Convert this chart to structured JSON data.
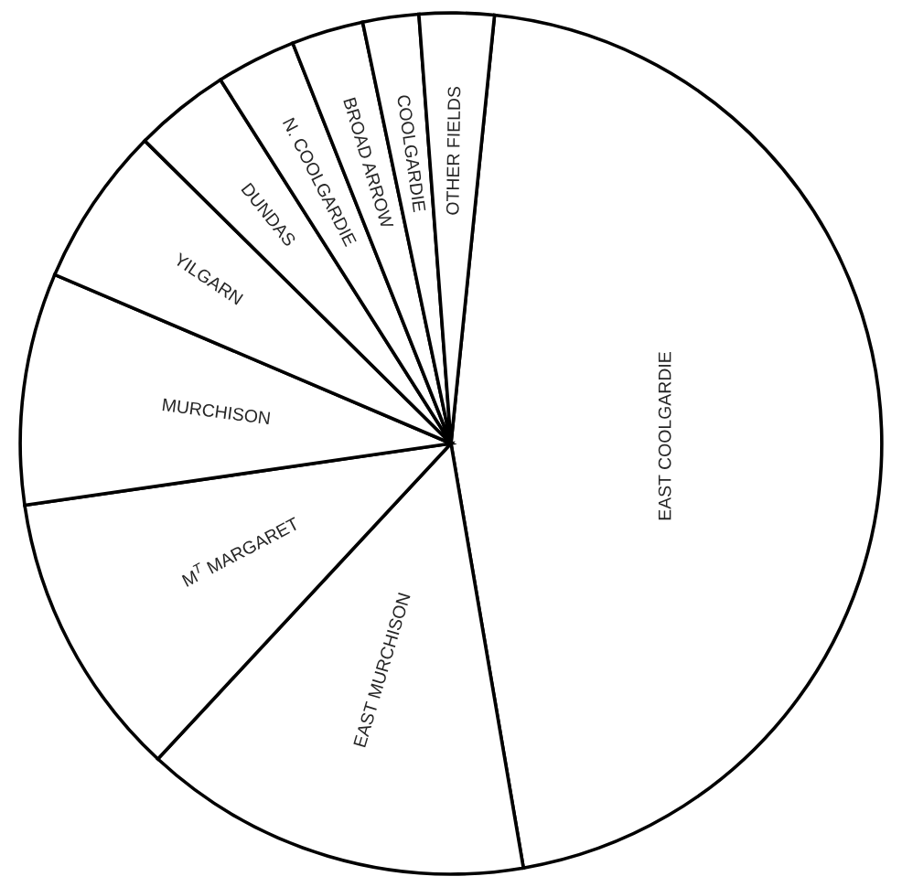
{
  "chart_data": {
    "type": "pie",
    "categories": [
      "EAST COOLGARDIE",
      "EAST MURCHISON",
      "M$^{T}$ MARGARET",
      "MURCHISON",
      "YILGARN",
      "DUNDAS",
      "N. COOLGARDIE",
      "BROAD ARROW",
      "COOLGARDIE",
      "OTHER FIELDS"
    ],
    "values": [
      45.7,
      14.6,
      10.8,
      8.7,
      6.0,
      3.6,
      3.0,
      2.7,
      2.1,
      2.8
    ],
    "colors": [
      "#ffffff",
      "#ffffff",
      "#ffffff",
      "#ffffff",
      "#ffffff",
      "#ffffff",
      "#ffffff",
      "#ffffff",
      "#ffffff",
      "#ffffff"
    ]
  }
}
